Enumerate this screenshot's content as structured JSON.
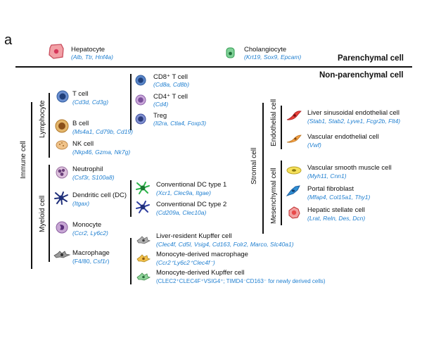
{
  "panel_label": "a",
  "sections": {
    "parenchymal": "Parenchymal cell",
    "non_parenchymal": "Non-parenchymal cell"
  },
  "groups": {
    "immune": "Immune cell",
    "lymphocyte": "Lymphocyte",
    "myeloid": "Myeloid cell",
    "stromal": "Stromal cell",
    "endothelial": "Endothelial cell",
    "mesenchymal": "Mesenchymal cell"
  },
  "cells": {
    "hepatocyte": {
      "name": "Hepatocyte",
      "markers": "(Alb, Ttr, Hnf4a)"
    },
    "cholangiocyte": {
      "name": "Cholangiocyte",
      "markers": "(Krt19, Sox9, Epcam)"
    },
    "t_cell": {
      "name": "T cell",
      "markers": "(Cd3d, Cd3g)"
    },
    "cd8_t": {
      "name": "CD8⁺ T cell",
      "markers": "(Cd8a, Cd8b)"
    },
    "cd4_t": {
      "name": "CD4⁺ T cell",
      "markers": "(Cd4)"
    },
    "treg": {
      "name": "Treg",
      "markers": "(Il2ra, Ctla4, Foxp3)"
    },
    "b_cell": {
      "name": "B cell",
      "markers": "(Ms4a1, Cd79b, Cd19)"
    },
    "nk_cell": {
      "name": "NK cell",
      "markers": "(Nkp46, Gzma, Nk7g)"
    },
    "neutrophil": {
      "name": "Neutrophil",
      "markers": "(Csf3r, S100a8)"
    },
    "dc": {
      "name": "Dendritic cell (DC)",
      "markers": "(Itgax)"
    },
    "cdc1": {
      "name": "Conventional DC type 1",
      "markers": "(Xcr1, Clec9a, Itgae)"
    },
    "cdc2": {
      "name": "Conventional DC type 2",
      "markers": "(Cd209a, Clec10a)"
    },
    "monocyte": {
      "name": "Monocyte",
      "markers": "(Ccr2, Ly6c2)"
    },
    "macrophage": {
      "name": "Macrophage",
      "markers_prefix": "(F4/80, ",
      "markers_italic": "Csf1r",
      "markers_suffix": ")"
    },
    "kupffer": {
      "name": "Liver-resident Kupffer cell",
      "markers": "(Clec4f, Cd5l, Vsig4, Cd163, Folr2, Marco, Slc40a1)"
    },
    "mono_macro": {
      "name": "Monocyte-derived macrophage",
      "markers": "(Ccr2⁺Ly6c2⁺Clec4f⁻)"
    },
    "mono_kupffer": {
      "name": "Monocyte-derived Kupffer cell",
      "markers": "(CLEC2⁺CLEC4F⁺VSIG4⁺; TIMD4⁻CD163⁻ for newly derived cells)"
    },
    "lsec": {
      "name": "Liver sinusoidal endothelial cell",
      "markers": "(Stab1, Stab2, Lyve1, Fcgr2b, Flt4)"
    },
    "vec": {
      "name": "Vascular endothelial cell",
      "markers": "(Vwf)"
    },
    "vsmc": {
      "name": "Vascular smooth muscle cell",
      "markers": "(Myh11, Cnn1)"
    },
    "pf": {
      "name": "Portal fibroblast",
      "markers": "(Mfap4, Col15a1, Thy1)"
    },
    "hsc": {
      "name": "Hepatic stellate cell",
      "markers": "(Lrat, Reln, Des, Dcn)"
    }
  },
  "icons": {
    "hepatocyte": "hepatocyte-cell-icon",
    "cholangiocyte": "cholangiocyte-cell-icon",
    "t_cell": "t-cell-icon",
    "cd8_t": "cd8-t-cell-icon",
    "cd4_t": "cd4-t-cell-icon",
    "treg": "treg-cell-icon",
    "b_cell": "b-cell-icon",
    "nk_cell": "nk-cell-icon",
    "neutrophil": "neutrophil-icon",
    "dc": "dendritic-cell-icon",
    "cdc1": "cdc1-icon",
    "cdc2": "cdc2-icon",
    "monocyte": "monocyte-icon",
    "macrophage": "macrophage-icon",
    "kupffer": "kupffer-cell-icon",
    "mono_macro": "monocyte-derived-macrophage-icon",
    "mono_kupffer": "monocyte-derived-kupffer-icon",
    "lsec": "lsec-icon",
    "vec": "vascular-endothelial-icon",
    "vsmc": "smooth-muscle-icon",
    "pf": "portal-fibroblast-icon",
    "hsc": "stellate-cell-icon"
  },
  "colors": {
    "marker_text": "#1f7fd0",
    "hepatocyte": "#f2a0a6",
    "cholangiocyte": "#7fd197",
    "t_cell": "#2f5c9e",
    "b_cell": "#d9a24a",
    "nk_cell": "#f0c38a",
    "neutrophil": "#c8a0c8",
    "dc": "#1f2f7a",
    "cdc1": "#2db34a",
    "monocyte": "#b88fc4",
    "lsec": "#e8403a",
    "vec": "#f3a046",
    "vsmc": "#f5e05a",
    "pf": "#2f8fd4",
    "hsc": "#e84a4a"
  }
}
